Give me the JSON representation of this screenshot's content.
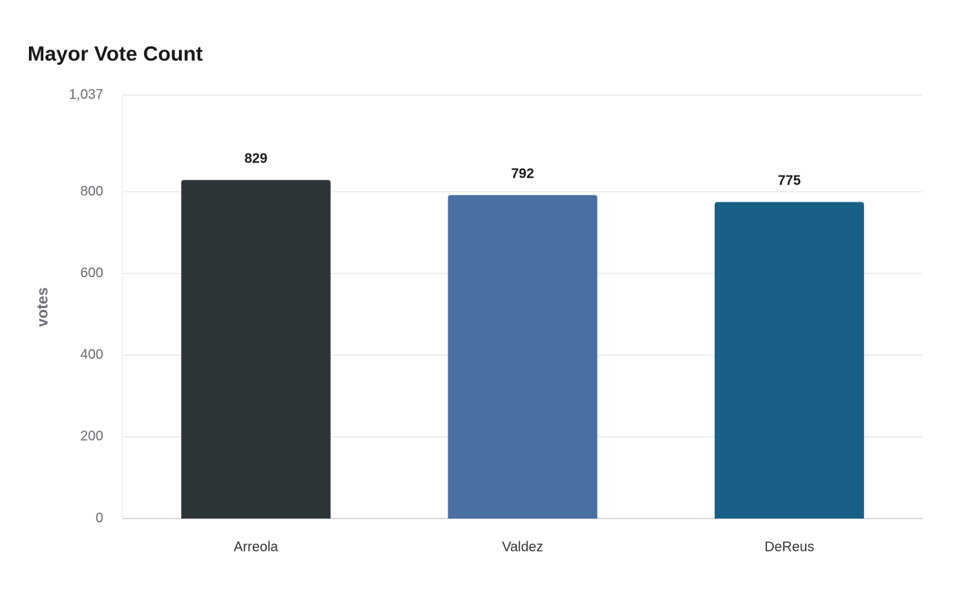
{
  "chart_data": {
    "type": "bar",
    "title": "Mayor Vote Count",
    "y_label": "votes",
    "categories": [
      "Arreola",
      "Valdez",
      "DeReus"
    ],
    "values": [
      829,
      792,
      775
    ],
    "colors": [
      "#2e3538",
      "#4a6fa3",
      "#186087"
    ],
    "ylim": [
      0,
      1037
    ],
    "yticks": [
      0,
      200,
      400,
      600,
      800,
      {
        "value": 1037,
        "label": "1,037"
      }
    ],
    "grid": true
  }
}
